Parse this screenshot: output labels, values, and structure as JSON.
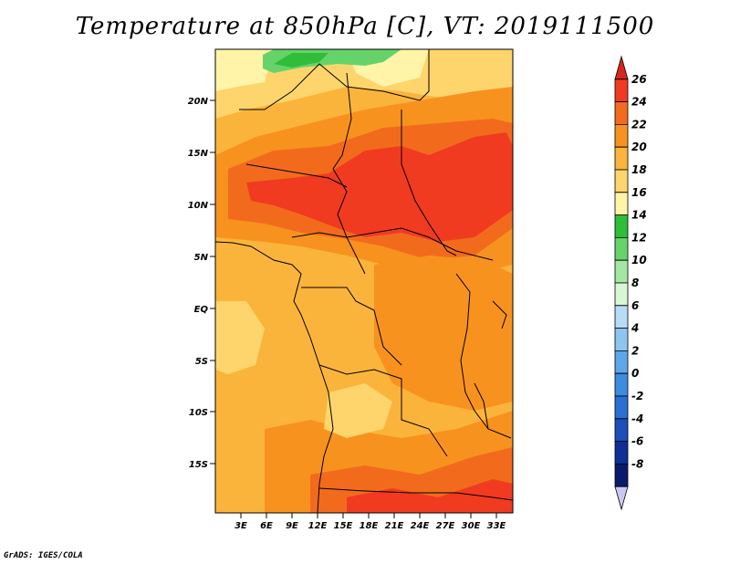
{
  "title": "Temperature at 850hPa [C], VT: 2019111500",
  "credit": "GrADS: IGES/COLA",
  "map": {
    "region": "Central Africa",
    "lat_range": [
      -20,
      25
    ],
    "lon_range": [
      0,
      35
    ]
  },
  "axes": {
    "lat_ticks": [
      "20N",
      "15N",
      "10N",
      "5N",
      "EQ",
      "5S",
      "10S",
      "15S"
    ],
    "lon_ticks": [
      "3E",
      "6E",
      "9E",
      "12E",
      "15E",
      "18E",
      "21E",
      "24E",
      "27E",
      "30E",
      "33E"
    ]
  },
  "colorbar": {
    "labels": [
      "26",
      "24",
      "22",
      "20",
      "18",
      "16",
      "14",
      "12",
      "10",
      "8",
      "6",
      "4",
      "2",
      "0",
      "-2",
      "-4",
      "-6",
      "-8"
    ],
    "colors": [
      "#d7261e",
      "#f03b20",
      "#f26b1d",
      "#f8921f",
      "#fbb43b",
      "#fdd56c",
      "#fff4a7",
      "#2fbd3a",
      "#66d36a",
      "#a4e7a2",
      "#d8f5d6",
      "#b7dcf5",
      "#8ec4f0",
      "#5ea6ea",
      "#3f8be0",
      "#2a6fd1",
      "#1b4fb8",
      "#0f2f94",
      "#0a1a6b",
      "#c8c8f0"
    ]
  }
}
